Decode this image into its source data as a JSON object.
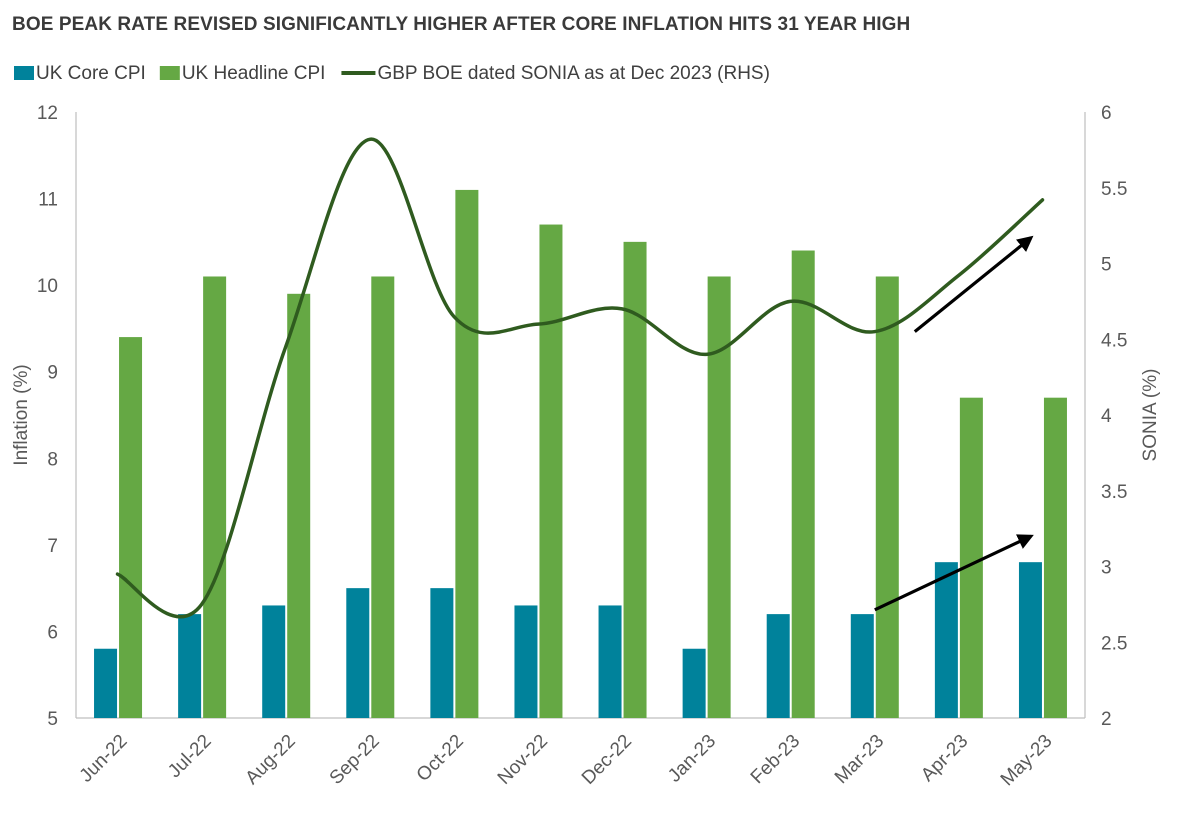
{
  "chart_data": {
    "type": "bar",
    "title": "BOE PEAK RATE REVISED SIGNIFICANTLY HIGHER AFTER CORE INFLATION HITS 31 YEAR HIGH",
    "categories": [
      "Jun-22",
      "Jul-22",
      "Aug-22",
      "Sep-22",
      "Oct-22",
      "Nov-22",
      "Dec-22",
      "Jan-23",
      "Feb-23",
      "Mar-23",
      "Apr-23",
      "May-23"
    ],
    "series": [
      {
        "name": "UK Core CPI",
        "type": "bar",
        "axis": "left",
        "color": "#00829b",
        "values": [
          5.8,
          6.2,
          6.3,
          6.5,
          6.5,
          6.3,
          6.3,
          5.8,
          6.2,
          6.2,
          6.8,
          6.8
        ]
      },
      {
        "name": "UK Headline CPI",
        "type": "bar",
        "axis": "left",
        "color": "#65a844",
        "values": [
          9.4,
          10.1,
          9.9,
          10.1,
          11.1,
          10.7,
          10.5,
          10.1,
          10.4,
          10.1,
          8.7,
          8.7
        ]
      },
      {
        "name": "GBP BOE dated SONIA as at Dec 2023 (RHS)",
        "type": "line",
        "axis": "right",
        "color": "#2f5b1f",
        "values": [
          2.95,
          2.75,
          4.45,
          5.82,
          4.65,
          4.6,
          4.7,
          4.4,
          4.75,
          4.55,
          4.92,
          5.42
        ]
      }
    ],
    "ylabel": "Inflation (%)",
    "ylabel_right": "SONIA (%)",
    "ylim": [
      5,
      12
    ],
    "ylim_right": [
      2,
      6
    ],
    "yticks": [
      "5",
      "6",
      "7",
      "8",
      "9",
      "10",
      "11",
      "12"
    ],
    "yticks_right": [
      "2",
      "2.5",
      "3",
      "3.5",
      "4",
      "4.5",
      "5",
      "5.5",
      "6"
    ],
    "legend_position": "top-left",
    "grid": false,
    "annotations": [
      {
        "type": "arrow",
        "from": [
          "Mar-23",
          4.55
        ],
        "to": [
          "May-23",
          5.17
        ],
        "axis": "right",
        "color": "#000000"
      },
      {
        "type": "arrow",
        "from": [
          "Mar-23",
          6.25
        ],
        "to": [
          "May-23",
          7.1
        ],
        "axis": "left",
        "color": "#000000"
      }
    ]
  }
}
